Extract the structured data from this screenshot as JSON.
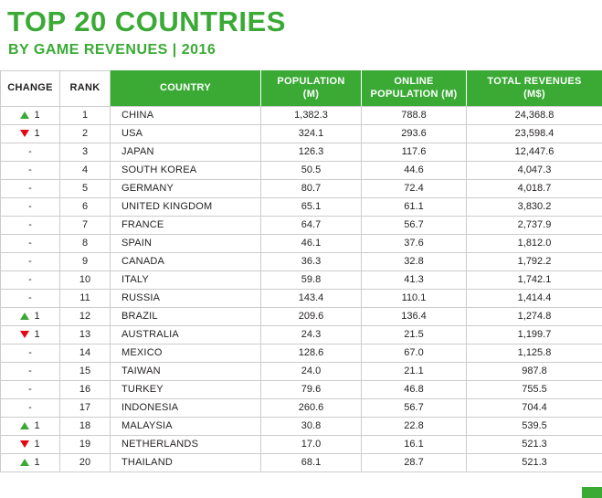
{
  "colors": {
    "green": "#3aaa35",
    "red": "#e30613",
    "border": "#cccccc",
    "text": "#231f20"
  },
  "chart_data": {
    "type": "table",
    "title": "TOP 20 COUNTRIES",
    "subtitle": "BY GAME REVENUES | 2016",
    "columns": [
      "CHANGE",
      "RANK",
      "COUNTRY",
      "POPULATION\n(M)",
      "ONLINE\nPOPULATION (M)",
      "TOTAL REVENUES\n(M$)"
    ],
    "rows": [
      {
        "change": "up",
        "change_value": "1",
        "rank": "1",
        "country": "CHINA",
        "population": "1,382.3",
        "online_population": "788.8",
        "total_revenues": "24,368.8"
      },
      {
        "change": "down",
        "change_value": "1",
        "rank": "2",
        "country": "USA",
        "population": "324.1",
        "online_population": "293.6",
        "total_revenues": "23,598.4"
      },
      {
        "change": "none",
        "change_value": "-",
        "rank": "3",
        "country": "JAPAN",
        "population": "126.3",
        "online_population": "117.6",
        "total_revenues": "12,447.6"
      },
      {
        "change": "none",
        "change_value": "-",
        "rank": "4",
        "country": "SOUTH KOREA",
        "population": "50.5",
        "online_population": "44.6",
        "total_revenues": "4,047.3"
      },
      {
        "change": "none",
        "change_value": "-",
        "rank": "5",
        "country": "GERMANY",
        "population": "80.7",
        "online_population": "72.4",
        "total_revenues": "4,018.7"
      },
      {
        "change": "none",
        "change_value": "-",
        "rank": "6",
        "country": "UNITED KINGDOM",
        "population": "65.1",
        "online_population": "61.1",
        "total_revenues": "3,830.2"
      },
      {
        "change": "none",
        "change_value": "-",
        "rank": "7",
        "country": "FRANCE",
        "population": "64.7",
        "online_population": "56.7",
        "total_revenues": "2,737.9"
      },
      {
        "change": "none",
        "change_value": "-",
        "rank": "8",
        "country": "SPAIN",
        "population": "46.1",
        "online_population": "37.6",
        "total_revenues": "1,812.0"
      },
      {
        "change": "none",
        "change_value": "-",
        "rank": "9",
        "country": "CANADA",
        "population": "36.3",
        "online_population": "32.8",
        "total_revenues": "1,792.2"
      },
      {
        "change": "none",
        "change_value": "-",
        "rank": "10",
        "country": "ITALY",
        "population": "59.8",
        "online_population": "41.3",
        "total_revenues": "1,742.1"
      },
      {
        "change": "none",
        "change_value": "-",
        "rank": "11",
        "country": "RUSSIA",
        "population": "143.4",
        "online_population": "110.1",
        "total_revenues": "1,414.4"
      },
      {
        "change": "up",
        "change_value": "1",
        "rank": "12",
        "country": "BRAZIL",
        "population": "209.6",
        "online_population": "136.4",
        "total_revenues": "1,274.8"
      },
      {
        "change": "down",
        "change_value": "1",
        "rank": "13",
        "country": "AUSTRALIA",
        "population": "24.3",
        "online_population": "21.5",
        "total_revenues": "1,199.7"
      },
      {
        "change": "none",
        "change_value": "-",
        "rank": "14",
        "country": "MEXICO",
        "population": "128.6",
        "online_population": "67.0",
        "total_revenues": "1,125.8"
      },
      {
        "change": "none",
        "change_value": "-",
        "rank": "15",
        "country": "TAIWAN",
        "population": "24.0",
        "online_population": "21.1",
        "total_revenues": "987.8"
      },
      {
        "change": "none",
        "change_value": "-",
        "rank": "16",
        "country": "TURKEY",
        "population": "79.6",
        "online_population": "46.8",
        "total_revenues": "755.5"
      },
      {
        "change": "none",
        "change_value": "-",
        "rank": "17",
        "country": "INDONESIA",
        "population": "260.6",
        "online_population": "56.7",
        "total_revenues": "704.4"
      },
      {
        "change": "up",
        "change_value": "1",
        "rank": "18",
        "country": "MALAYSIA",
        "population": "30.8",
        "online_population": "22.8",
        "total_revenues": "539.5"
      },
      {
        "change": "down",
        "change_value": "1",
        "rank": "19",
        "country": "NETHERLANDS",
        "population": "17.0",
        "online_population": "16.1",
        "total_revenues": "521.3"
      },
      {
        "change": "up",
        "change_value": "1",
        "rank": "20",
        "country": "THAILAND",
        "population": "68.1",
        "online_population": "28.7",
        "total_revenues": "521.3"
      }
    ]
  }
}
